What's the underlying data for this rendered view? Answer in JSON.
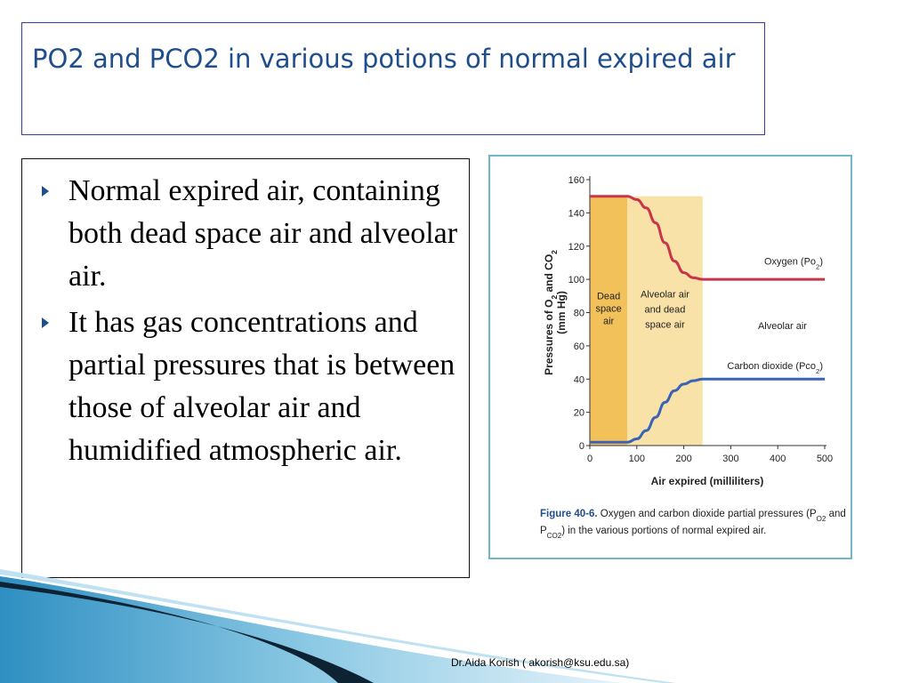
{
  "slide": {
    "title": "PO2 and PCO2 in various potions of normal expired air",
    "bullets": [
      "Normal expired air, containing both dead space air and alveolar air.",
      "It has gas concentrations and partial pressures that is between those of alveolar air and humidified atmospheric air."
    ],
    "footer": "Dr.Aida Korish ( akorish@ksu.edu.sa)",
    "bullet_icon": "triangle-right-icon",
    "colors": {
      "title": "#1f4e8c",
      "figure_border": "#6fb7c9",
      "dead_space": "#f2c15a",
      "mixed": "#f8e2a8",
      "oxygen": "#c8354a",
      "co2": "#3a62b6"
    }
  },
  "chart_data": {
    "type": "line",
    "ylabel_parts": [
      "Pressures of O",
      "2",
      " and CO",
      "2"
    ],
    "ylabel_unit": "(mm Hg)",
    "xlabel": "Air expired (milliliters)",
    "xlim": [
      0,
      500
    ],
    "ylim": [
      0,
      160
    ],
    "xticks": [
      0,
      100,
      200,
      300,
      400,
      500
    ],
    "yticks": [
      0,
      20,
      40,
      60,
      80,
      100,
      120,
      140,
      160
    ],
    "regions": [
      {
        "label_lines": [
          "Dead",
          "space",
          "air"
        ],
        "x_start": 0,
        "x_end": 80
      },
      {
        "label_lines": [
          "Alveolar air",
          "and dead",
          "space air"
        ],
        "x_start": 80,
        "x_end": 240
      },
      {
        "label_lines": [
          "Alveolar air"
        ],
        "x_start": 240,
        "x_end": 500
      }
    ],
    "series": [
      {
        "name": "Oxygen (Po2)",
        "label_parts": [
          "Oxygen (Po",
          "2",
          ")"
        ],
        "x": [
          0,
          80,
          100,
          120,
          140,
          160,
          180,
          200,
          220,
          240,
          500
        ],
        "y": [
          150,
          150,
          148,
          143,
          134,
          122,
          111,
          104,
          101,
          100,
          100
        ]
      },
      {
        "name": "Carbon dioxide (Pco2)",
        "label_parts": [
          "Carbon dioxide (Pco",
          "2",
          ")"
        ],
        "x": [
          0,
          80,
          100,
          120,
          140,
          160,
          180,
          200,
          220,
          240,
          500
        ],
        "y": [
          2,
          2,
          4,
          9,
          17,
          26,
          33,
          37,
          39,
          40,
          40
        ]
      }
    ],
    "caption_label": "Figure 40-6.",
    "caption_parts": [
      " Oxygen and carbon dioxide partial pressures (P",
      "O2",
      " and P",
      "CO2",
      ") in the various portions of normal expired air."
    ]
  }
}
